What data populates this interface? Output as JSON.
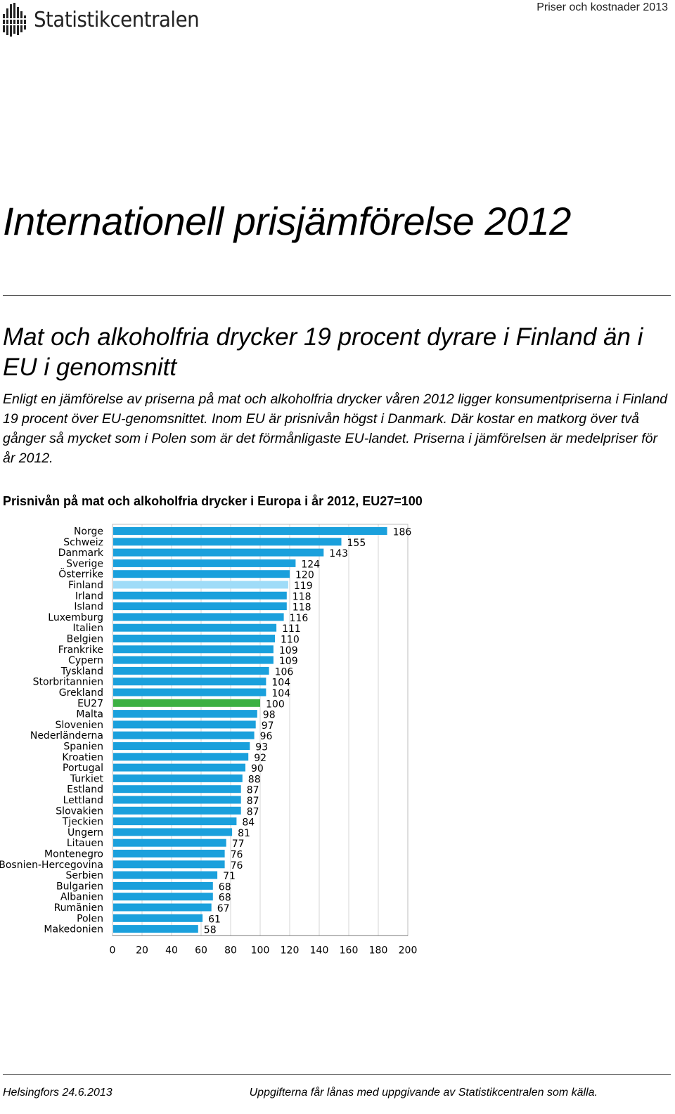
{
  "header": {
    "logo_text": "Statistikcentralen",
    "section": "Priser och kostnader 2013"
  },
  "title": "Internationell prisjämförelse 2012",
  "headline": "Mat och alkoholfria drycker 19 procent dyrare i Finland än i EU i genomsnitt",
  "lead": "Enligt en jämförelse av priserna på mat och alkoholfria drycker våren 2012 ligger konsumentpriserna i Finland 19 procent över EU-genomsnittet. Inom EU är prisnivån högst i Danmark. Där kostar en matkorg över två gånger så mycket som i Polen som är det förmånligaste EU-landet. Priserna i jämförelsen är medelpriser för år 2012.",
  "chart_title": "Prisnivån på mat och alkoholfria drycker i Europa i år 2012, EU27=100",
  "chart_data": {
    "type": "bar",
    "orientation": "horizontal",
    "categories": [
      "Norge",
      "Schweiz",
      "Danmark",
      "Sverige",
      "Österrike",
      "Finland",
      "Irland",
      "Island",
      "Luxemburg",
      "Italien",
      "Belgien",
      "Frankrike",
      "Cypern",
      "Tyskland",
      "Storbritannien",
      "Grekland",
      "EU27",
      "Malta",
      "Slovenien",
      "Nederländerna",
      "Spanien",
      "Kroatien",
      "Portugal",
      "Turkiet",
      "Estland",
      "Lettland",
      "Slovakien",
      "Tjeckien",
      "Ungern",
      "Litauen",
      "Montenegro",
      "Bosnien-Hercegovina",
      "Serbien",
      "Bulgarien",
      "Albanien",
      "Rumänien",
      "Polen",
      "Makedonien"
    ],
    "values": [
      186,
      155,
      143,
      124,
      120,
      119,
      118,
      118,
      116,
      111,
      110,
      109,
      109,
      106,
      104,
      104,
      100,
      98,
      97,
      96,
      93,
      92,
      90,
      88,
      87,
      87,
      87,
      84,
      81,
      77,
      76,
      76,
      71,
      68,
      68,
      67,
      61,
      58
    ],
    "xlim": [
      0,
      200
    ],
    "xticks": [
      0,
      20,
      40,
      60,
      80,
      100,
      120,
      140,
      160,
      180,
      200
    ],
    "grid": "vertical",
    "colors": {
      "default": "#1aa0dc",
      "Finland": "#9fdcf8",
      "EU27": "#3cb043"
    }
  },
  "footer": {
    "left": "Helsingfors 24.6.2013",
    "right": "Uppgifterna får lånas med uppgivande av Statistikcentralen som källa."
  }
}
